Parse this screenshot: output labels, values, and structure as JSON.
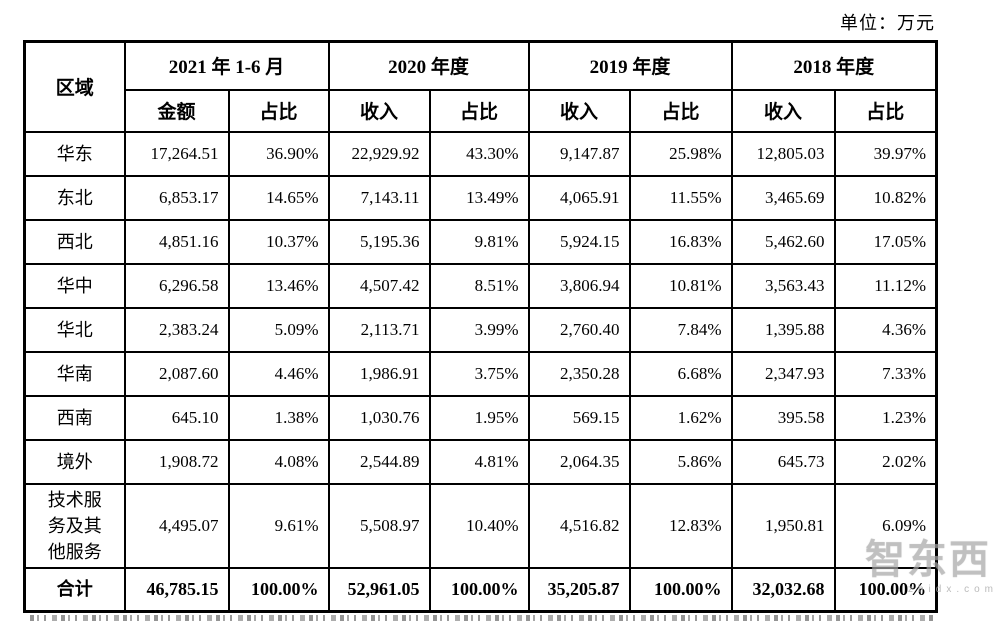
{
  "unit_label": "单位：万元",
  "table": {
    "region_header": "区域",
    "col_groups": [
      {
        "label": "2021 年 1-6 月",
        "sub": [
          "金额",
          "占比"
        ]
      },
      {
        "label": "2020 年度",
        "sub": [
          "收入",
          "占比"
        ]
      },
      {
        "label": "2019 年度",
        "sub": [
          "收入",
          "占比"
        ]
      },
      {
        "label": "2018 年度",
        "sub": [
          "收入",
          "占比"
        ]
      }
    ],
    "rows": [
      {
        "region": "华东",
        "bold": false,
        "values": [
          "17,264.51",
          "36.90%",
          "22,929.92",
          "43.30%",
          "9,147.87",
          "25.98%",
          "12,805.03",
          "39.97%"
        ]
      },
      {
        "region": "东北",
        "bold": false,
        "values": [
          "6,853.17",
          "14.65%",
          "7,143.11",
          "13.49%",
          "4,065.91",
          "11.55%",
          "3,465.69",
          "10.82%"
        ]
      },
      {
        "region": "西北",
        "bold": false,
        "values": [
          "4,851.16",
          "10.37%",
          "5,195.36",
          "9.81%",
          "5,924.15",
          "16.83%",
          "5,462.60",
          "17.05%"
        ]
      },
      {
        "region": "华中",
        "bold": false,
        "values": [
          "6,296.58",
          "13.46%",
          "4,507.42",
          "8.51%",
          "3,806.94",
          "10.81%",
          "3,563.43",
          "11.12%"
        ]
      },
      {
        "region": "华北",
        "bold": false,
        "values": [
          "2,383.24",
          "5.09%",
          "2,113.71",
          "3.99%",
          "2,760.40",
          "7.84%",
          "1,395.88",
          "4.36%"
        ]
      },
      {
        "region": "华南",
        "bold": false,
        "values": [
          "2,087.60",
          "4.46%",
          "1,986.91",
          "3.75%",
          "2,350.28",
          "6.68%",
          "2,347.93",
          "7.33%"
        ]
      },
      {
        "region": "西南",
        "bold": false,
        "values": [
          "645.10",
          "1.38%",
          "1,030.76",
          "1.95%",
          "569.15",
          "1.62%",
          "395.58",
          "1.23%"
        ]
      },
      {
        "region": "境外",
        "bold": false,
        "values": [
          "1,908.72",
          "4.08%",
          "2,544.89",
          "4.81%",
          "2,064.35",
          "5.86%",
          "645.73",
          "2.02%"
        ]
      },
      {
        "region": "技术服\n务及其\n他服务",
        "bold": false,
        "values": [
          "4,495.07",
          "9.61%",
          "5,508.97",
          "10.40%",
          "4,516.82",
          "12.83%",
          "1,950.81",
          "6.09%"
        ]
      },
      {
        "region": "合计",
        "bold": true,
        "values": [
          "46,785.15",
          "100.00%",
          "52,961.05",
          "100.00%",
          "35,205.87",
          "100.00%",
          "32,032.68",
          "100.00%"
        ]
      }
    ]
  },
  "watermark": {
    "logo_text": "智东西",
    "sub_text": "zhidx.com"
  }
}
